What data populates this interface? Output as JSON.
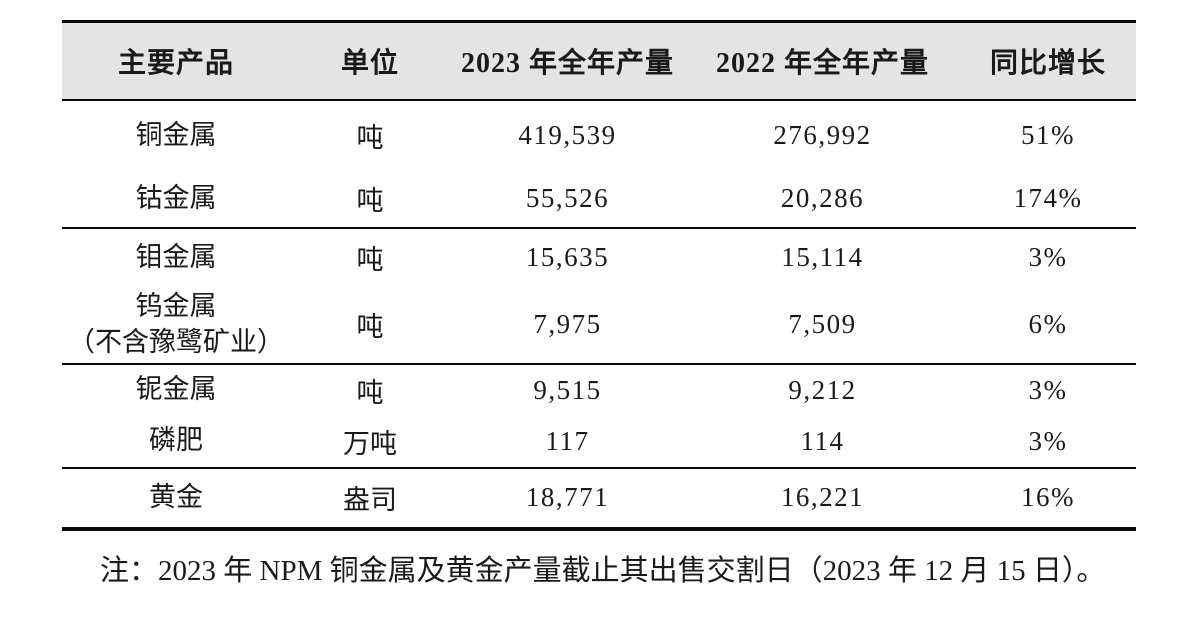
{
  "table": {
    "header_bg": "#e4e4e4",
    "border_color": "#0a0a0a",
    "columns": {
      "product": "主要产品",
      "unit": "单位",
      "y2023": "2023 年全年产量",
      "y2022": "2022 年全年产量",
      "growth": "同比增长"
    },
    "rows": [
      {
        "product": "铜金属",
        "unit": "吨",
        "y2023": "419,539",
        "y2022": "276,992",
        "growth": "51%"
      },
      {
        "product": "钴金属",
        "unit": "吨",
        "y2023": "55,526",
        "y2022": "20,286",
        "growth": "174%"
      },
      {
        "product": "钼金属",
        "unit": "吨",
        "y2023": "15,635",
        "y2022": "15,114",
        "growth": "3%"
      },
      {
        "product": "钨金属\n（不含豫鹭矿业）",
        "unit": "吨",
        "y2023": "7,975",
        "y2022": "7,509",
        "growth": "6%"
      },
      {
        "product": "铌金属",
        "unit": "吨",
        "y2023": "9,515",
        "y2022": "9,212",
        "growth": "3%"
      },
      {
        "product": "磷肥",
        "unit": "万吨",
        "y2023": "117",
        "y2022": "114",
        "growth": "3%"
      },
      {
        "product": "黄金",
        "unit": "盎司",
        "y2023": "18,771",
        "y2022": "16,221",
        "growth": "16%"
      }
    ]
  },
  "footnote": "注：2023 年 NPM 铜金属及黄金产量截止其出售交割日（2023 年 12 月 15 日）。"
}
